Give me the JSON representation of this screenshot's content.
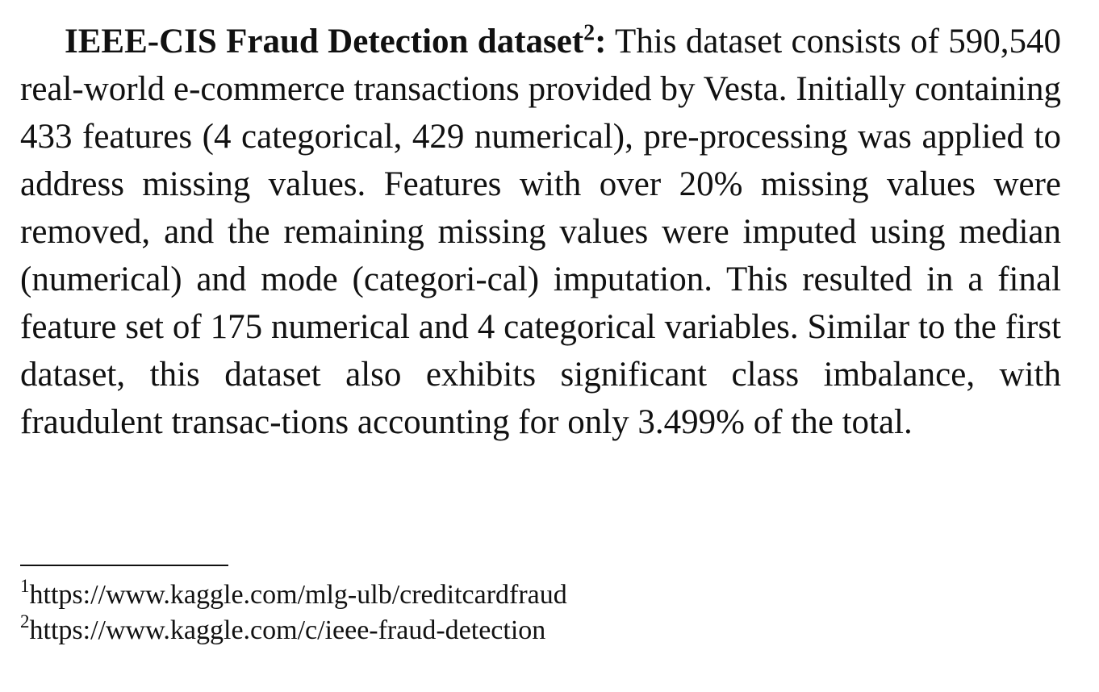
{
  "paragraph": {
    "heading": "IEEE-CIS Fraud Detection dataset",
    "heading_footnote_mark": "2",
    "heading_colon": ":",
    "body_lines": [
      " This dataset consists of",
      "590,540 real-world e-commerce transactions provided by Vesta.",
      "Initially containing 433 features (4 categorical, 429 numerical), pre-",
      "processing was applied to address missing values. Features with",
      "over 20% missing values were removed, and the remaining missing",
      "values were imputed using median (numerical) and mode (categori-",
      "cal) imputation. This resulted in a final feature set of 175 numerical",
      "and 4 categorical variables. Similar to the first dataset, this dataset",
      "also exhibits significant class imbalance, with fraudulent transac-",
      "tions accounting for only 3.499% of the total."
    ]
  },
  "footnotes": [
    {
      "mark": "1",
      "text": "https://www.kaggle.com/mlg-ulb/creditcardfraud"
    },
    {
      "mark": "2",
      "text": "https://www.kaggle.com/c/ieee-fraud-detection"
    }
  ]
}
